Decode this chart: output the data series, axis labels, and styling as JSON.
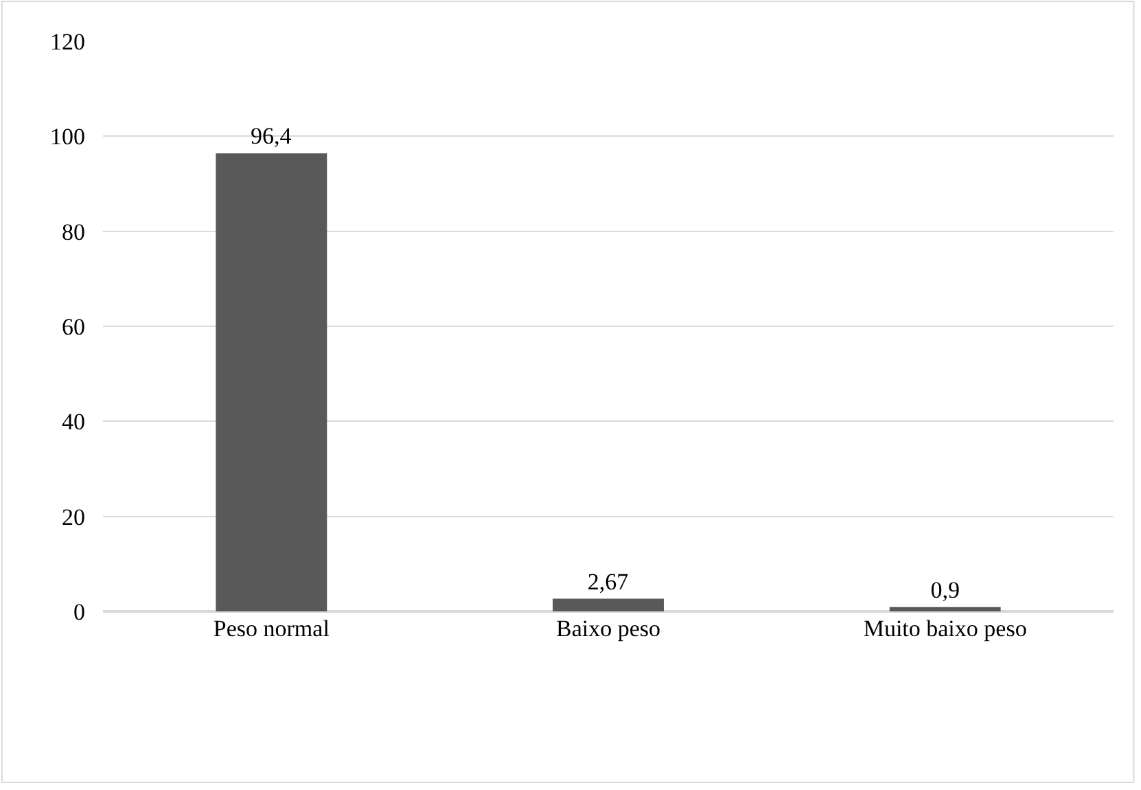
{
  "chart_data": {
    "type": "bar",
    "categories": [
      "Peso normal",
      "Baixo peso",
      "Muito baixo peso"
    ],
    "values": [
      96.4,
      2.67,
      0.9
    ],
    "value_labels": [
      "96,4",
      "2,67",
      "0,9"
    ],
    "color": "#595959",
    "ylim": [
      0,
      120
    ],
    "yticks": [
      0,
      20,
      40,
      60,
      80,
      100,
      120
    ],
    "grid": "y"
  }
}
